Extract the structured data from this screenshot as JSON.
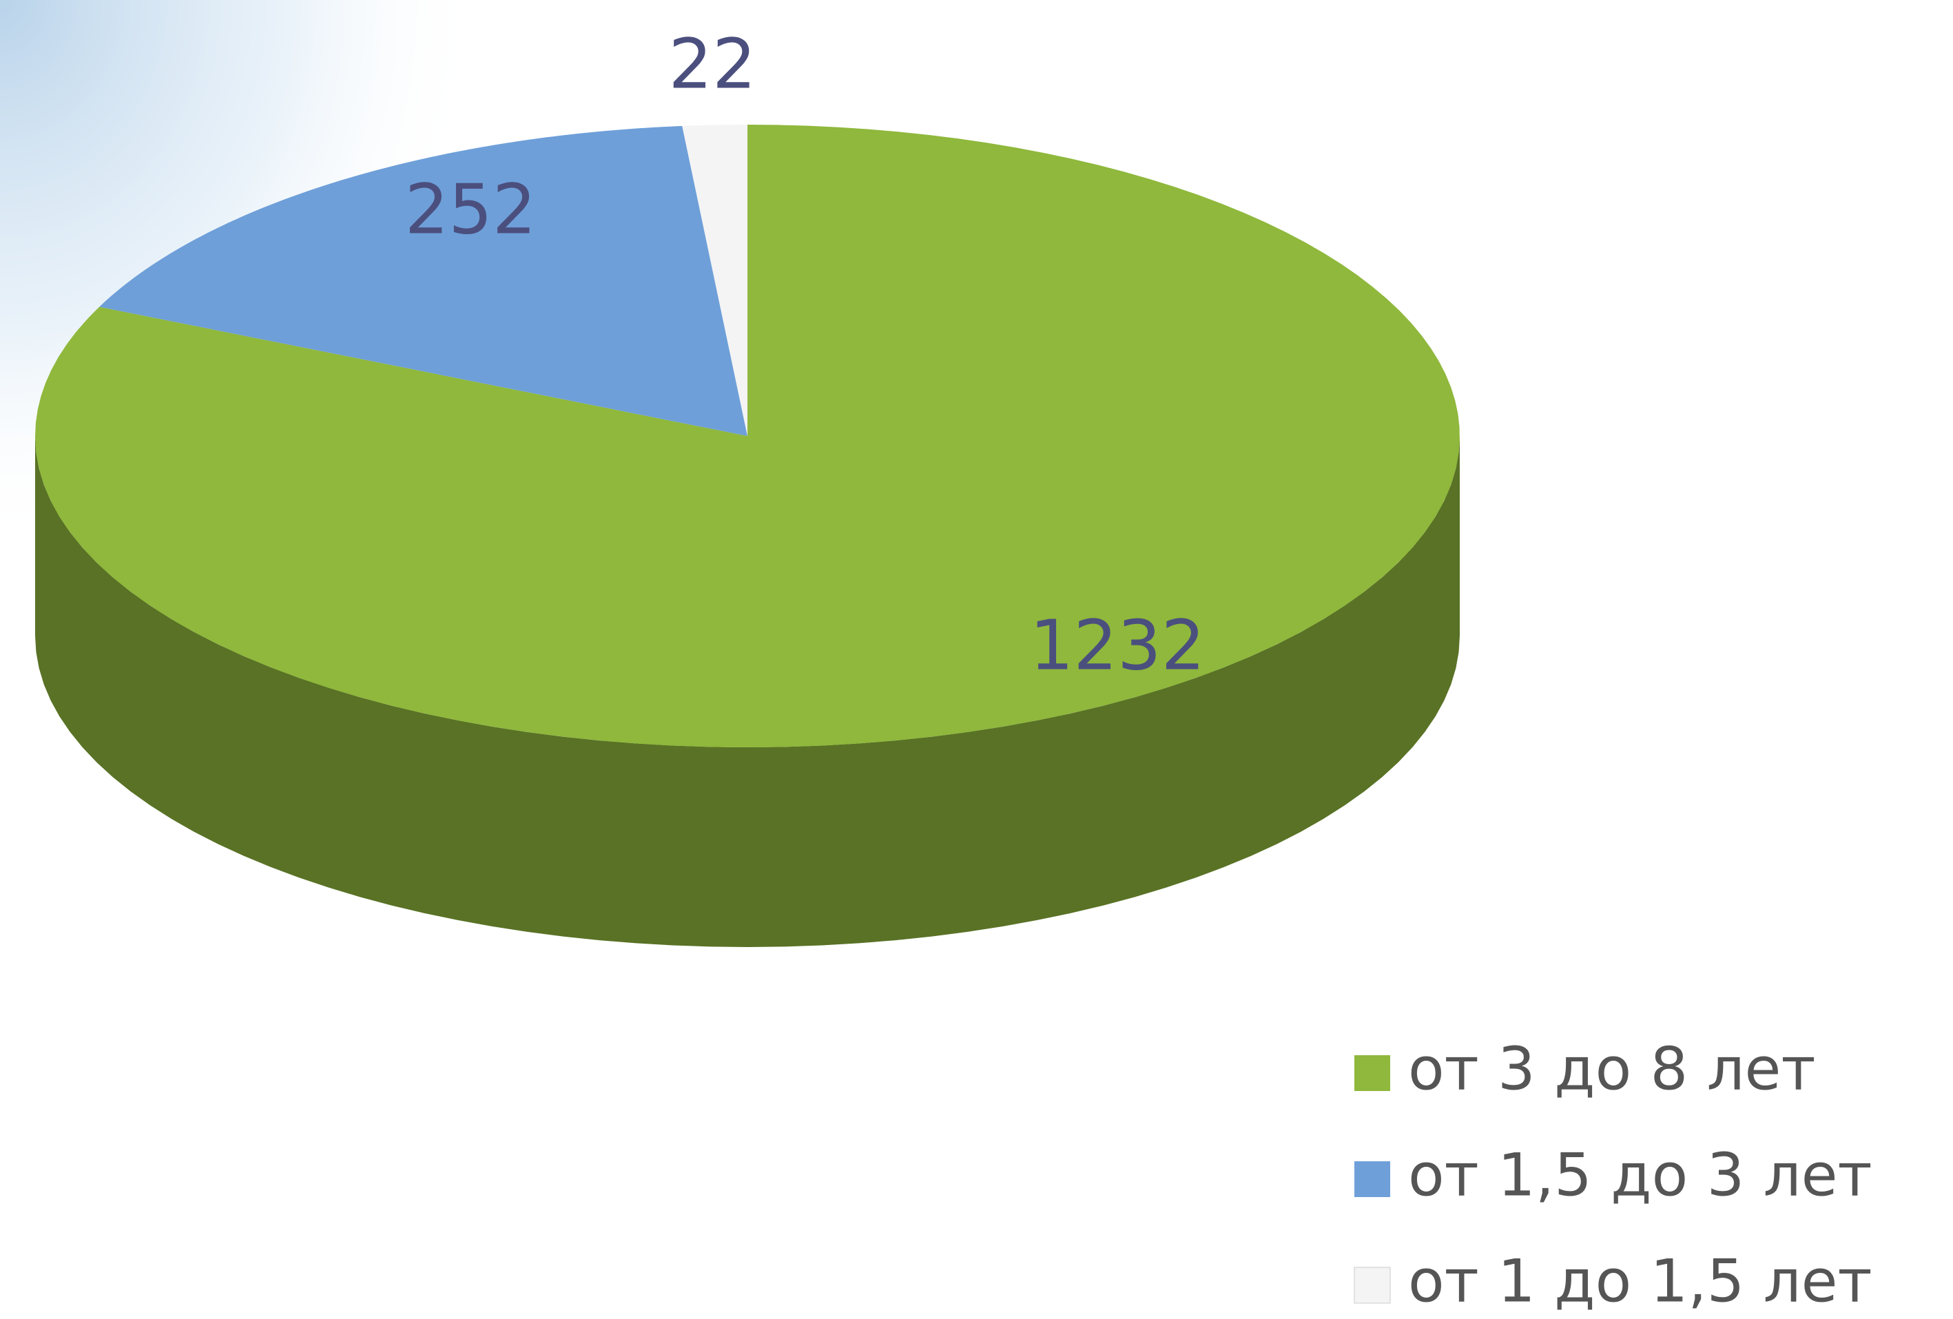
{
  "chart_data": {
    "type": "pie",
    "categories": [
      "от 3 до 8 лет",
      "от 1,5 до 3 лет",
      "от 1 до 1,5 лет"
    ],
    "values": [
      1232,
      252,
      22
    ],
    "colors": [
      "#8fb83c",
      "#6e9fd9",
      "#f4f4f4"
    ],
    "legend": "bottom-right"
  }
}
